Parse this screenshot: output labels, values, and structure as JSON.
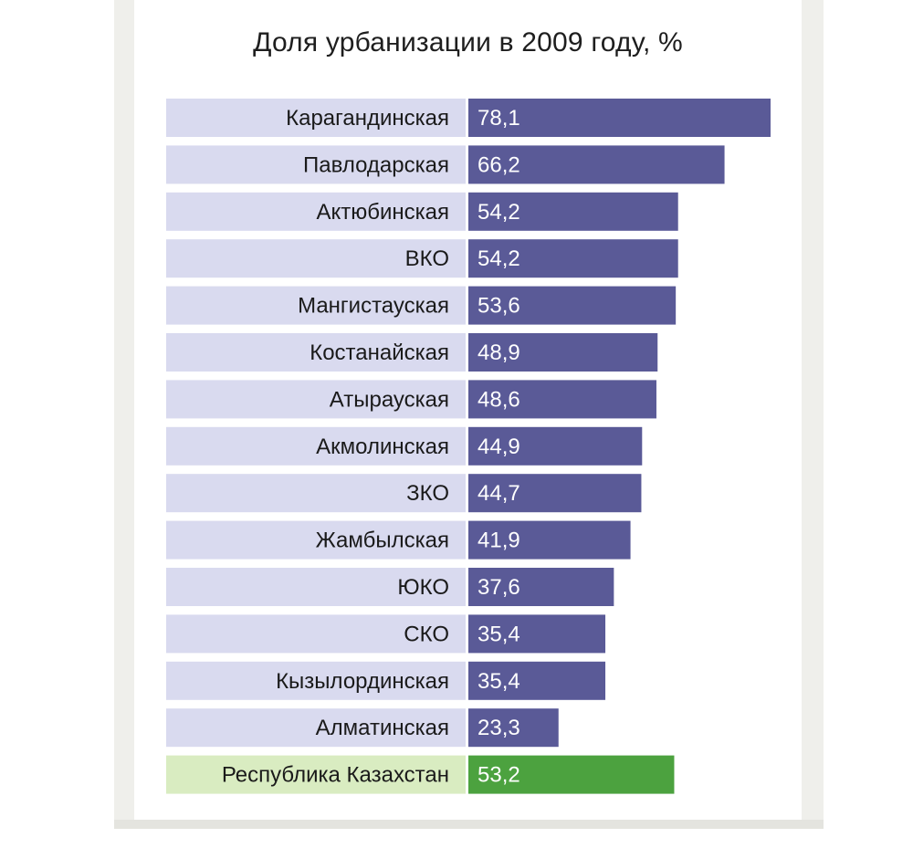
{
  "colors": {
    "bar": "#5a5a97",
    "bar_total": "#4ca23f",
    "label_bg": "#d9daef",
    "label_bg_total": "#d9ecc1"
  },
  "chart_data": {
    "type": "bar",
    "orientation": "horizontal",
    "title": "Доля урбанизации в 2009 году, %",
    "categories": [
      "Карагандинская",
      "Павлодарская",
      "Актюбинская",
      "ВКО",
      "Мангистауская",
      "Костанайская",
      "Атырауская",
      "Акмолинская",
      "ЗКО",
      "Жамбылская",
      "ЮКО",
      "СКО",
      "Кызылординская",
      "Алматинская",
      "Республика Казахстан"
    ],
    "values": [
      78.1,
      66.2,
      54.2,
      54.2,
      53.6,
      48.9,
      48.6,
      44.9,
      44.7,
      41.9,
      37.6,
      35.4,
      35.4,
      23.3,
      53.2
    ],
    "value_labels": [
      "78,1",
      "66,2",
      "54,2",
      "54,2",
      "53,6",
      "48,9",
      "48,6",
      "44,9",
      "44,7",
      "41,9",
      "37,6",
      "35,4",
      "35,4",
      "23,3",
      "53,2"
    ],
    "highlighted_category": "Республика Казахстан",
    "xlim": [
      0,
      80
    ],
    "grid": false,
    "legend": "none"
  }
}
